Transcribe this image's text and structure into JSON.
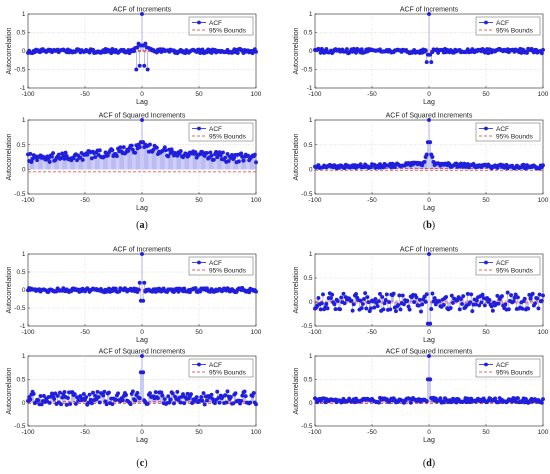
{
  "colors": {
    "series": "#1f1fdc",
    "bounds": "#e0322d",
    "grid": "#b8b8b8"
  },
  "captions": [
    "a",
    "b",
    "c",
    "d"
  ],
  "chart_data": [
    {
      "id": "a1",
      "type": "stem",
      "panel": "a",
      "title": "ACF of Increments",
      "xlabel": "Lag",
      "ylabel": "Autocorrelation",
      "xlim": [
        -100,
        100
      ],
      "ylim": [
        -1,
        1
      ],
      "xticks": [
        -100,
        -50,
        0,
        50,
        100
      ],
      "yticks": [
        -1,
        -0.5,
        0,
        0.5,
        1
      ],
      "legend": [
        "ACF",
        "95% Bounds"
      ],
      "legend_position": "top-right",
      "bounds": 0.02,
      "noise_amp": 0.05,
      "noise_bias": 0.0,
      "peak": [
        [
          -6,
          0.08
        ],
        [
          -5,
          -0.5
        ],
        [
          -4,
          0.1
        ],
        [
          -3,
          0.2
        ],
        [
          -2,
          -0.4
        ],
        [
          -1,
          0.15
        ],
        [
          0,
          1
        ],
        [
          1,
          0.15
        ],
        [
          2,
          -0.4
        ],
        [
          3,
          0.2
        ],
        [
          4,
          0.1
        ],
        [
          5,
          -0.5
        ],
        [
          6,
          0.08
        ]
      ],
      "grid": true
    },
    {
      "id": "a2",
      "type": "stem",
      "panel": "a",
      "title": "ACF of Squared Increments",
      "xlabel": "Lag",
      "ylabel": "Autocorrelation",
      "xlim": [
        -100,
        100
      ],
      "ylim": [
        -0.5,
        1
      ],
      "xticks": [
        -100,
        -50,
        0,
        50,
        100
      ],
      "yticks": [
        -0.5,
        0,
        0.5,
        1
      ],
      "legend": [
        "ACF",
        "95% Bounds"
      ],
      "legend_position": "top-right",
      "bounds": -0.05,
      "noise_amp": 0.08,
      "noise_bias": 0.2,
      "bulge": 0.25,
      "peak": [
        [
          -3,
          0.5
        ],
        [
          -2,
          0.45
        ],
        [
          -1,
          0.55
        ],
        [
          0,
          1
        ],
        [
          1,
          0.55
        ],
        [
          2,
          0.45
        ],
        [
          3,
          0.5
        ]
      ],
      "grid": true
    },
    {
      "id": "b1",
      "type": "stem",
      "panel": "b",
      "title": "ACF of Increments",
      "xlabel": "Lag",
      "ylabel": "Autocorrelation",
      "xlim": [
        -100,
        100
      ],
      "ylim": [
        -1,
        1
      ],
      "xticks": [
        -100,
        -50,
        0,
        50,
        100
      ],
      "yticks": [
        -1,
        -0.5,
        0,
        0.5,
        1
      ],
      "legend": [
        "ACF",
        "95% Bounds"
      ],
      "legend_position": "top-right",
      "bounds": 0.02,
      "noise_amp": 0.05,
      "noise_bias": 0.0,
      "peak": [
        [
          -2,
          -0.3
        ],
        [
          -1,
          -0.1
        ],
        [
          0,
          1
        ],
        [
          1,
          -0.1
        ],
        [
          2,
          -0.3
        ]
      ],
      "grid": true
    },
    {
      "id": "b2",
      "type": "stem",
      "panel": "b",
      "title": "ACF of Squared Increments",
      "xlabel": "Lag",
      "ylabel": "Autocorrelation",
      "xlim": [
        -100,
        100
      ],
      "ylim": [
        -0.5,
        1
      ],
      "xticks": [
        -100,
        -50,
        0,
        50,
        100
      ],
      "yticks": [
        -0.5,
        0,
        0.5,
        1
      ],
      "legend": [
        "ACF",
        "95% Bounds"
      ],
      "legend_position": "top-right",
      "bounds": 0.02,
      "noise_amp": 0.035,
      "noise_bias": 0.04,
      "bulge": 0.08,
      "peak": [
        [
          -4,
          0.15
        ],
        [
          -3,
          0.25
        ],
        [
          -2,
          0.3
        ],
        [
          -1,
          0.55
        ],
        [
          0,
          1
        ],
        [
          1,
          0.55
        ],
        [
          2,
          0.3
        ],
        [
          3,
          0.25
        ],
        [
          4,
          0.15
        ]
      ],
      "grid": true
    },
    {
      "id": "c1",
      "type": "stem",
      "panel": "c",
      "title": "ACF of Increments",
      "xlabel": "Lag",
      "ylabel": "Autocorrelation",
      "xlim": [
        -100,
        100
      ],
      "ylim": [
        -1,
        1
      ],
      "xticks": [
        -100,
        -50,
        0,
        50,
        100
      ],
      "yticks": [
        -1,
        -0.5,
        0,
        0.5,
        1
      ],
      "legend": [
        "ACF",
        "95% Bounds"
      ],
      "legend_position": "top-right",
      "bounds": 0.02,
      "noise_amp": 0.05,
      "noise_bias": 0.0,
      "peak": [
        [
          -2,
          0.2
        ],
        [
          -1,
          -0.3
        ],
        [
          0,
          1
        ],
        [
          1,
          -0.3
        ],
        [
          2,
          0.2
        ]
      ],
      "grid": true
    },
    {
      "id": "c2",
      "type": "stem",
      "panel": "c",
      "title": "ACF of Squared Increments",
      "xlabel": "Lag",
      "ylabel": "Autocorrelation",
      "xlim": [
        -100,
        100
      ],
      "ylim": [
        -0.5,
        1
      ],
      "xticks": [
        -100,
        -50,
        0,
        50,
        100
      ],
      "yticks": [
        -0.5,
        0,
        0.5,
        1
      ],
      "legend": [
        "ACF",
        "95% Bounds"
      ],
      "legend_position": "top-right",
      "bounds": 0.02,
      "noise_amp": 0.12,
      "noise_bias": 0.1,
      "peak": [
        [
          -1,
          0.65
        ],
        [
          0,
          1
        ],
        [
          1,
          0.65
        ]
      ],
      "grid": true
    },
    {
      "id": "d1",
      "type": "stem",
      "panel": "d",
      "title": "ACF of Increments",
      "xlabel": "Lag",
      "ylabel": "Autocorrelation",
      "xlim": [
        -100,
        100
      ],
      "ylim": [
        -0.5,
        1
      ],
      "xticks": [
        -100,
        -50,
        0,
        50,
        100
      ],
      "yticks": [
        -0.5,
        0,
        0.5,
        1
      ],
      "legend": [
        "ACF",
        "95% Bounds"
      ],
      "legend_position": "top-right",
      "bounds": 0.02,
      "noise_amp": 0.16,
      "noise_bias": 0.0,
      "peak": [
        [
          -1,
          -0.45
        ],
        [
          0,
          1
        ],
        [
          1,
          -0.45
        ]
      ],
      "grid": true
    },
    {
      "id": "d2",
      "type": "stem",
      "panel": "d",
      "title": "ACF of Squared Increments",
      "xlabel": "Lag",
      "ylabel": "Autocorrelation",
      "xlim": [
        -100,
        100
      ],
      "ylim": [
        -0.5,
        1
      ],
      "xticks": [
        -100,
        -50,
        0,
        50,
        100
      ],
      "yticks": [
        -0.5,
        0,
        0.5,
        1
      ],
      "legend": [
        "ACF",
        "95% Bounds"
      ],
      "legend_position": "top-right",
      "bounds": 0.02,
      "noise_amp": 0.045,
      "noise_bias": 0.05,
      "peak": [
        [
          -1,
          0.5
        ],
        [
          0,
          1
        ],
        [
          1,
          0.5
        ]
      ],
      "grid": true
    }
  ]
}
